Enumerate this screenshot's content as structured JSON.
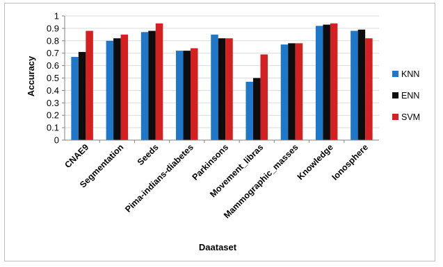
{
  "chart_data": {
    "type": "bar",
    "title": "",
    "xlabel": "Daataset",
    "ylabel": "Accuracy",
    "ylim": [
      0,
      1
    ],
    "yticks": [
      "0",
      "0.1",
      "0.2",
      "0.3",
      "0.4",
      "0.5",
      "0.6",
      "0.7",
      "0.8",
      "0.9",
      "1"
    ],
    "grid": "horizontal",
    "legend_position": "right",
    "categories": [
      "CNAE9",
      "Segmentation",
      "Seeds",
      "Pima-indians-diabetes",
      "Parkinsons",
      "Movement_libras",
      "Mammographic_masses",
      "Knowledge",
      "Ionosphere"
    ],
    "series": [
      {
        "name": "KNN",
        "color": "#1f77c9",
        "values": [
          0.67,
          0.8,
          0.87,
          0.72,
          0.85,
          0.47,
          0.77,
          0.92,
          0.88
        ]
      },
      {
        "name": "ENN",
        "color": "#0d0d0d",
        "values": [
          0.71,
          0.82,
          0.88,
          0.72,
          0.82,
          0.5,
          0.78,
          0.93,
          0.89
        ]
      },
      {
        "name": "SVM",
        "color": "#d42020",
        "values": [
          0.88,
          0.85,
          0.94,
          0.74,
          0.82,
          0.69,
          0.78,
          0.94,
          0.82
        ]
      }
    ]
  }
}
